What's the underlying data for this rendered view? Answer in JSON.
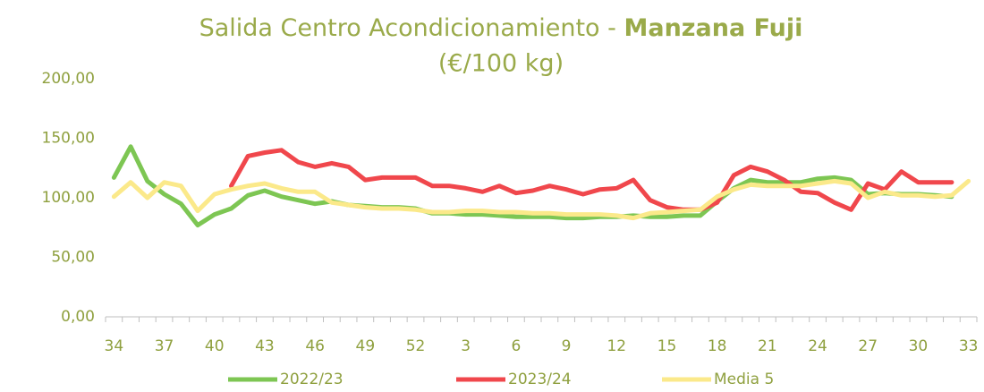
{
  "chart_data": {
    "type": "line",
    "title": "Salida Centro Acondicionamiento - ",
    "title_bold": "Manzana Fuji",
    "subtitle": "(€/100 kg)",
    "categories": [
      "34",
      null,
      null,
      "37",
      null,
      null,
      "40",
      null,
      null,
      "43",
      null,
      null,
      "46",
      null,
      null,
      "49",
      null,
      null,
      "52",
      null,
      null,
      "3",
      null,
      null,
      "6",
      null,
      null,
      "9",
      null,
      null,
      "12",
      null,
      null,
      "15",
      null,
      null,
      "18",
      null,
      null,
      "21",
      null,
      null,
      "24",
      null,
      null,
      "27",
      null,
      null,
      "30",
      null,
      null,
      "33"
    ],
    "series": [
      {
        "name": "2022/23",
        "color": "#7dc653",
        "values": [
          117,
          143,
          114,
          103,
          95,
          77,
          86,
          91,
          102,
          106,
          101,
          98,
          95,
          97,
          94,
          93,
          92,
          92,
          91,
          87,
          87,
          86,
          86,
          85,
          84,
          84,
          84,
          83,
          83,
          84,
          84,
          85,
          84,
          84,
          85,
          85,
          97,
          108,
          115,
          113,
          113,
          113,
          116,
          117,
          115,
          103,
          104,
          103,
          103,
          102,
          101,
          null
        ]
      },
      {
        "name": "2023/24",
        "color": "#f0474c",
        "values": [
          null,
          null,
          null,
          null,
          null,
          null,
          null,
          110,
          135,
          138,
          140,
          130,
          126,
          129,
          126,
          115,
          117,
          117,
          117,
          110,
          110,
          108,
          105,
          110,
          104,
          106,
          110,
          107,
          103,
          107,
          108,
          115,
          98,
          92,
          90,
          90,
          96,
          119,
          126,
          122,
          115,
          105,
          104,
          96,
          90,
          112,
          107,
          122,
          113,
          113,
          113,
          null
        ]
      },
      {
        "name": "Media 5",
        "color": "#fbe98a",
        "values": [
          101,
          113,
          100,
          113,
          110,
          89,
          103,
          107,
          110,
          112,
          108,
          105,
          105,
          96,
          94,
          92,
          91,
          91,
          90,
          88,
          88,
          89,
          89,
          88,
          88,
          87,
          87,
          86,
          86,
          86,
          85,
          83,
          87,
          88,
          89,
          90,
          101,
          107,
          111,
          110,
          110,
          110,
          112,
          114,
          112,
          100,
          105,
          102,
          102,
          101,
          102,
          114
        ]
      }
    ],
    "ylim": [
      0,
      200
    ],
    "yticks": [
      {
        "value": 0,
        "label": "0,00"
      },
      {
        "value": 50,
        "label": "50,00"
      },
      {
        "value": 100,
        "label": "100,00"
      },
      {
        "value": 150,
        "label": "150,00"
      },
      {
        "value": 200,
        "label": "200,00"
      }
    ],
    "grid": false
  }
}
